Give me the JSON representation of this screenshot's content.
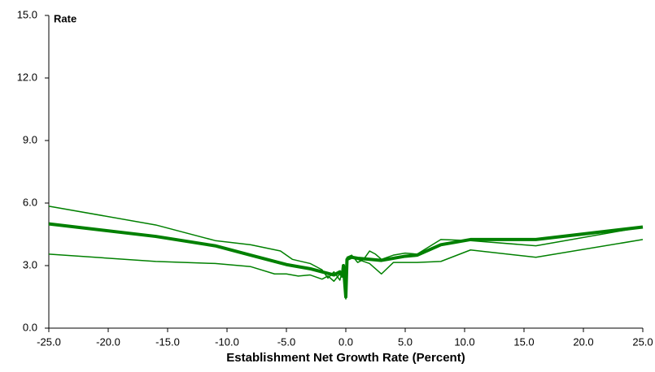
{
  "chart_data": {
    "type": "line",
    "y_label": "Rate",
    "x_label": "Establishment Net Growth Rate (Percent)",
    "xlim": [
      -25,
      25
    ],
    "ylim": [
      0,
      15
    ],
    "xticks": [
      {
        "value": -25,
        "label": "-25.0"
      },
      {
        "value": -20,
        "label": "-20.0"
      },
      {
        "value": -15,
        "label": "-15.0"
      },
      {
        "value": -10,
        "label": "-10.0"
      },
      {
        "value": -5,
        "label": "-5.0"
      },
      {
        "value": 0,
        "label": "0.0"
      },
      {
        "value": 5,
        "label": "5.0"
      },
      {
        "value": 10,
        "label": "10.0"
      },
      {
        "value": 15,
        "label": "15.0"
      },
      {
        "value": 20,
        "label": "20.0"
      },
      {
        "value": 25,
        "label": "25.0"
      }
    ],
    "yticks": [
      {
        "value": 0,
        "label": "0.0"
      },
      {
        "value": 3,
        "label": "3.0"
      },
      {
        "value": 6,
        "label": "6.0"
      },
      {
        "value": 9,
        "label": "9.0"
      },
      {
        "value": 12,
        "label": "12.0"
      },
      {
        "value": 15,
        "label": "15.0"
      }
    ],
    "grid": false,
    "series": [
      {
        "color": "#008000",
        "width": 4,
        "x": [
          -25,
          -16,
          -11,
          -8,
          -5,
          -3,
          -2,
          -1,
          -0.5,
          -0.3,
          -0.2,
          0,
          0.1,
          0.5,
          1,
          2,
          3,
          5,
          6,
          8,
          10.5,
          16,
          25
        ],
        "values": [
          5.0,
          4.4,
          3.95,
          3.5,
          3.05,
          2.85,
          2.7,
          2.55,
          2.7,
          2.5,
          3.0,
          1.5,
          3.3,
          3.4,
          3.35,
          3.3,
          3.25,
          3.45,
          3.5,
          4.0,
          4.25,
          4.25,
          4.85
        ]
      },
      {
        "color": "#008000",
        "width": 1.5,
        "x": [
          -25,
          -16,
          -11,
          -8,
          -5.5,
          -4.5,
          -3,
          -2,
          -1.5,
          -1,
          -0.5,
          -0.2,
          0,
          0.1,
          0.5,
          1,
          1.5,
          2,
          2.5,
          3,
          4,
          5,
          6,
          8,
          10.5,
          16,
          25
        ],
        "values": [
          5.85,
          4.95,
          4.2,
          4.0,
          3.7,
          3.3,
          3.1,
          2.8,
          2.4,
          2.7,
          2.3,
          2.9,
          1.6,
          3.4,
          3.5,
          3.15,
          3.3,
          3.7,
          3.55,
          3.3,
          3.5,
          3.6,
          3.55,
          4.25,
          4.2,
          3.95,
          4.85
        ]
      },
      {
        "color": "#008000",
        "width": 1.5,
        "x": [
          -25,
          -16,
          -11,
          -8,
          -6,
          -5,
          -4,
          -3,
          -2,
          -1.5,
          -1,
          -0.5,
          -0.2,
          0,
          0.1,
          0.5,
          1,
          2,
          3,
          4,
          6,
          8,
          10.5,
          16,
          25
        ],
        "values": [
          3.55,
          3.2,
          3.1,
          2.95,
          2.6,
          2.6,
          2.5,
          2.55,
          2.35,
          2.5,
          2.25,
          2.6,
          2.7,
          1.4,
          3.3,
          3.4,
          3.3,
          3.1,
          2.6,
          3.15,
          3.15,
          3.2,
          3.75,
          3.4,
          4.25
        ]
      }
    ]
  }
}
